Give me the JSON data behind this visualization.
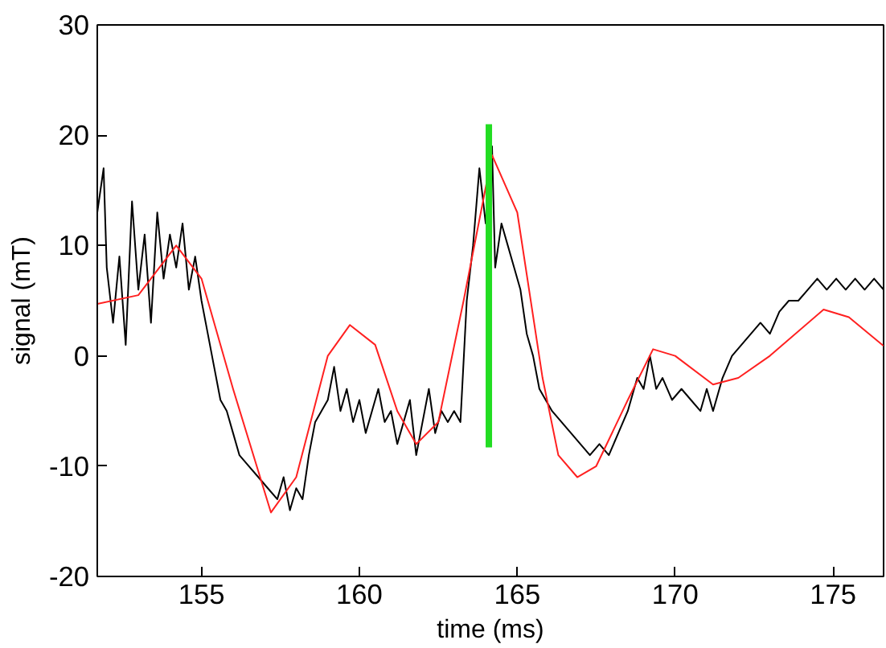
{
  "chart_data": {
    "type": "line",
    "xlabel": "time (ms)",
    "ylabel": "signal (mT)",
    "xlim": [
      151.7,
      176.6
    ],
    "ylim": [
      -20,
      30
    ],
    "xticks": [
      155,
      160,
      165,
      170,
      175
    ],
    "yticks": [
      -20,
      -10,
      0,
      10,
      20,
      30
    ],
    "grid": false,
    "marker": "none",
    "line_style": "solid",
    "series": [
      {
        "color": "#000000",
        "x": [
          151.7,
          151.9,
          152.0,
          152.2,
          152.4,
          152.6,
          152.8,
          153.0,
          153.2,
          153.4,
          153.6,
          153.8,
          154.0,
          154.2,
          154.4,
          154.6,
          154.8,
          155.0,
          155.2,
          155.4,
          155.6,
          155.8,
          156.0,
          156.2,
          156.5,
          156.8,
          157.1,
          157.4,
          157.6,
          157.8,
          158.0,
          158.2,
          158.4,
          158.6,
          158.8,
          159.0,
          159.2,
          159.4,
          159.6,
          159.8,
          160.0,
          160.2,
          160.4,
          160.6,
          160.8,
          161.0,
          161.2,
          161.4,
          161.6,
          161.8,
          162.0,
          162.2,
          162.4,
          162.6,
          162.8,
          163.0,
          163.2,
          163.4,
          163.6,
          163.8,
          164.0,
          164.2,
          164.3,
          164.5,
          164.7,
          164.9,
          165.1,
          165.3,
          165.5,
          165.7,
          165.9,
          166.1,
          166.4,
          166.7,
          167.0,
          167.3,
          167.6,
          167.9,
          168.2,
          168.5,
          168.8,
          169.0,
          169.2,
          169.4,
          169.6,
          169.9,
          170.2,
          170.5,
          170.8,
          171.0,
          171.2,
          171.5,
          171.8,
          172.1,
          172.4,
          172.7,
          173.0,
          173.3,
          173.6,
          173.9,
          174.2,
          174.5,
          174.8,
          175.1,
          175.4,
          175.7,
          176.0,
          176.3,
          176.6
        ],
        "values": [
          13,
          17,
          8,
          3,
          9,
          1,
          14,
          6,
          11,
          3,
          13,
          7,
          11,
          8,
          12,
          6,
          9,
          5,
          2,
          -1,
          -4,
          -5,
          -7,
          -9,
          -10,
          -11,
          -12,
          -13,
          -11,
          -14,
          -12,
          -13,
          -9,
          -6,
          -5,
          -4,
          -1,
          -5,
          -3,
          -6,
          -4,
          -7,
          -5,
          -3,
          -6,
          -5,
          -8,
          -6,
          -4,
          -9,
          -6,
          -3,
          -7,
          -5,
          -6,
          -5,
          -6,
          5,
          10,
          17,
          12,
          19,
          8,
          12,
          10,
          8,
          6,
          2,
          0,
          -3,
          -4,
          -5,
          -6,
          -7,
          -8,
          -9,
          -8,
          -9,
          -7,
          -5,
          -2,
          -3,
          0,
          -3,
          -2,
          -4,
          -3,
          -4,
          -5,
          -3,
          -5,
          -2,
          0,
          1,
          2,
          3,
          2,
          4,
          5,
          5,
          6,
          7,
          6,
          7,
          6,
          7,
          6,
          7,
          6
        ]
      },
      {
        "color": "#ff2020",
        "x": [
          151.7,
          153.0,
          154.2,
          155.0,
          156.0,
          157.2,
          158.0,
          159.0,
          159.7,
          160.5,
          161.2,
          161.8,
          162.5,
          163.3,
          164.2,
          165.0,
          165.8,
          166.3,
          166.9,
          167.5,
          168.5,
          169.3,
          170.0,
          171.2,
          172.0,
          173.0,
          174.7,
          175.5,
          176.6
        ],
        "values": [
          4.7,
          5.5,
          10,
          7,
          -3,
          -14.2,
          -11,
          0,
          2.8,
          1,
          -5,
          -8,
          -6,
          5,
          18.2,
          13,
          -2,
          -9,
          -11,
          -10,
          -4,
          0.6,
          0,
          -2.6,
          -2,
          0,
          4.2,
          3.5,
          0.9
        ]
      },
      {
        "color": "#22dd22",
        "x": [
          164.1,
          164.1
        ],
        "values": [
          21,
          -8.3
        ]
      }
    ]
  }
}
